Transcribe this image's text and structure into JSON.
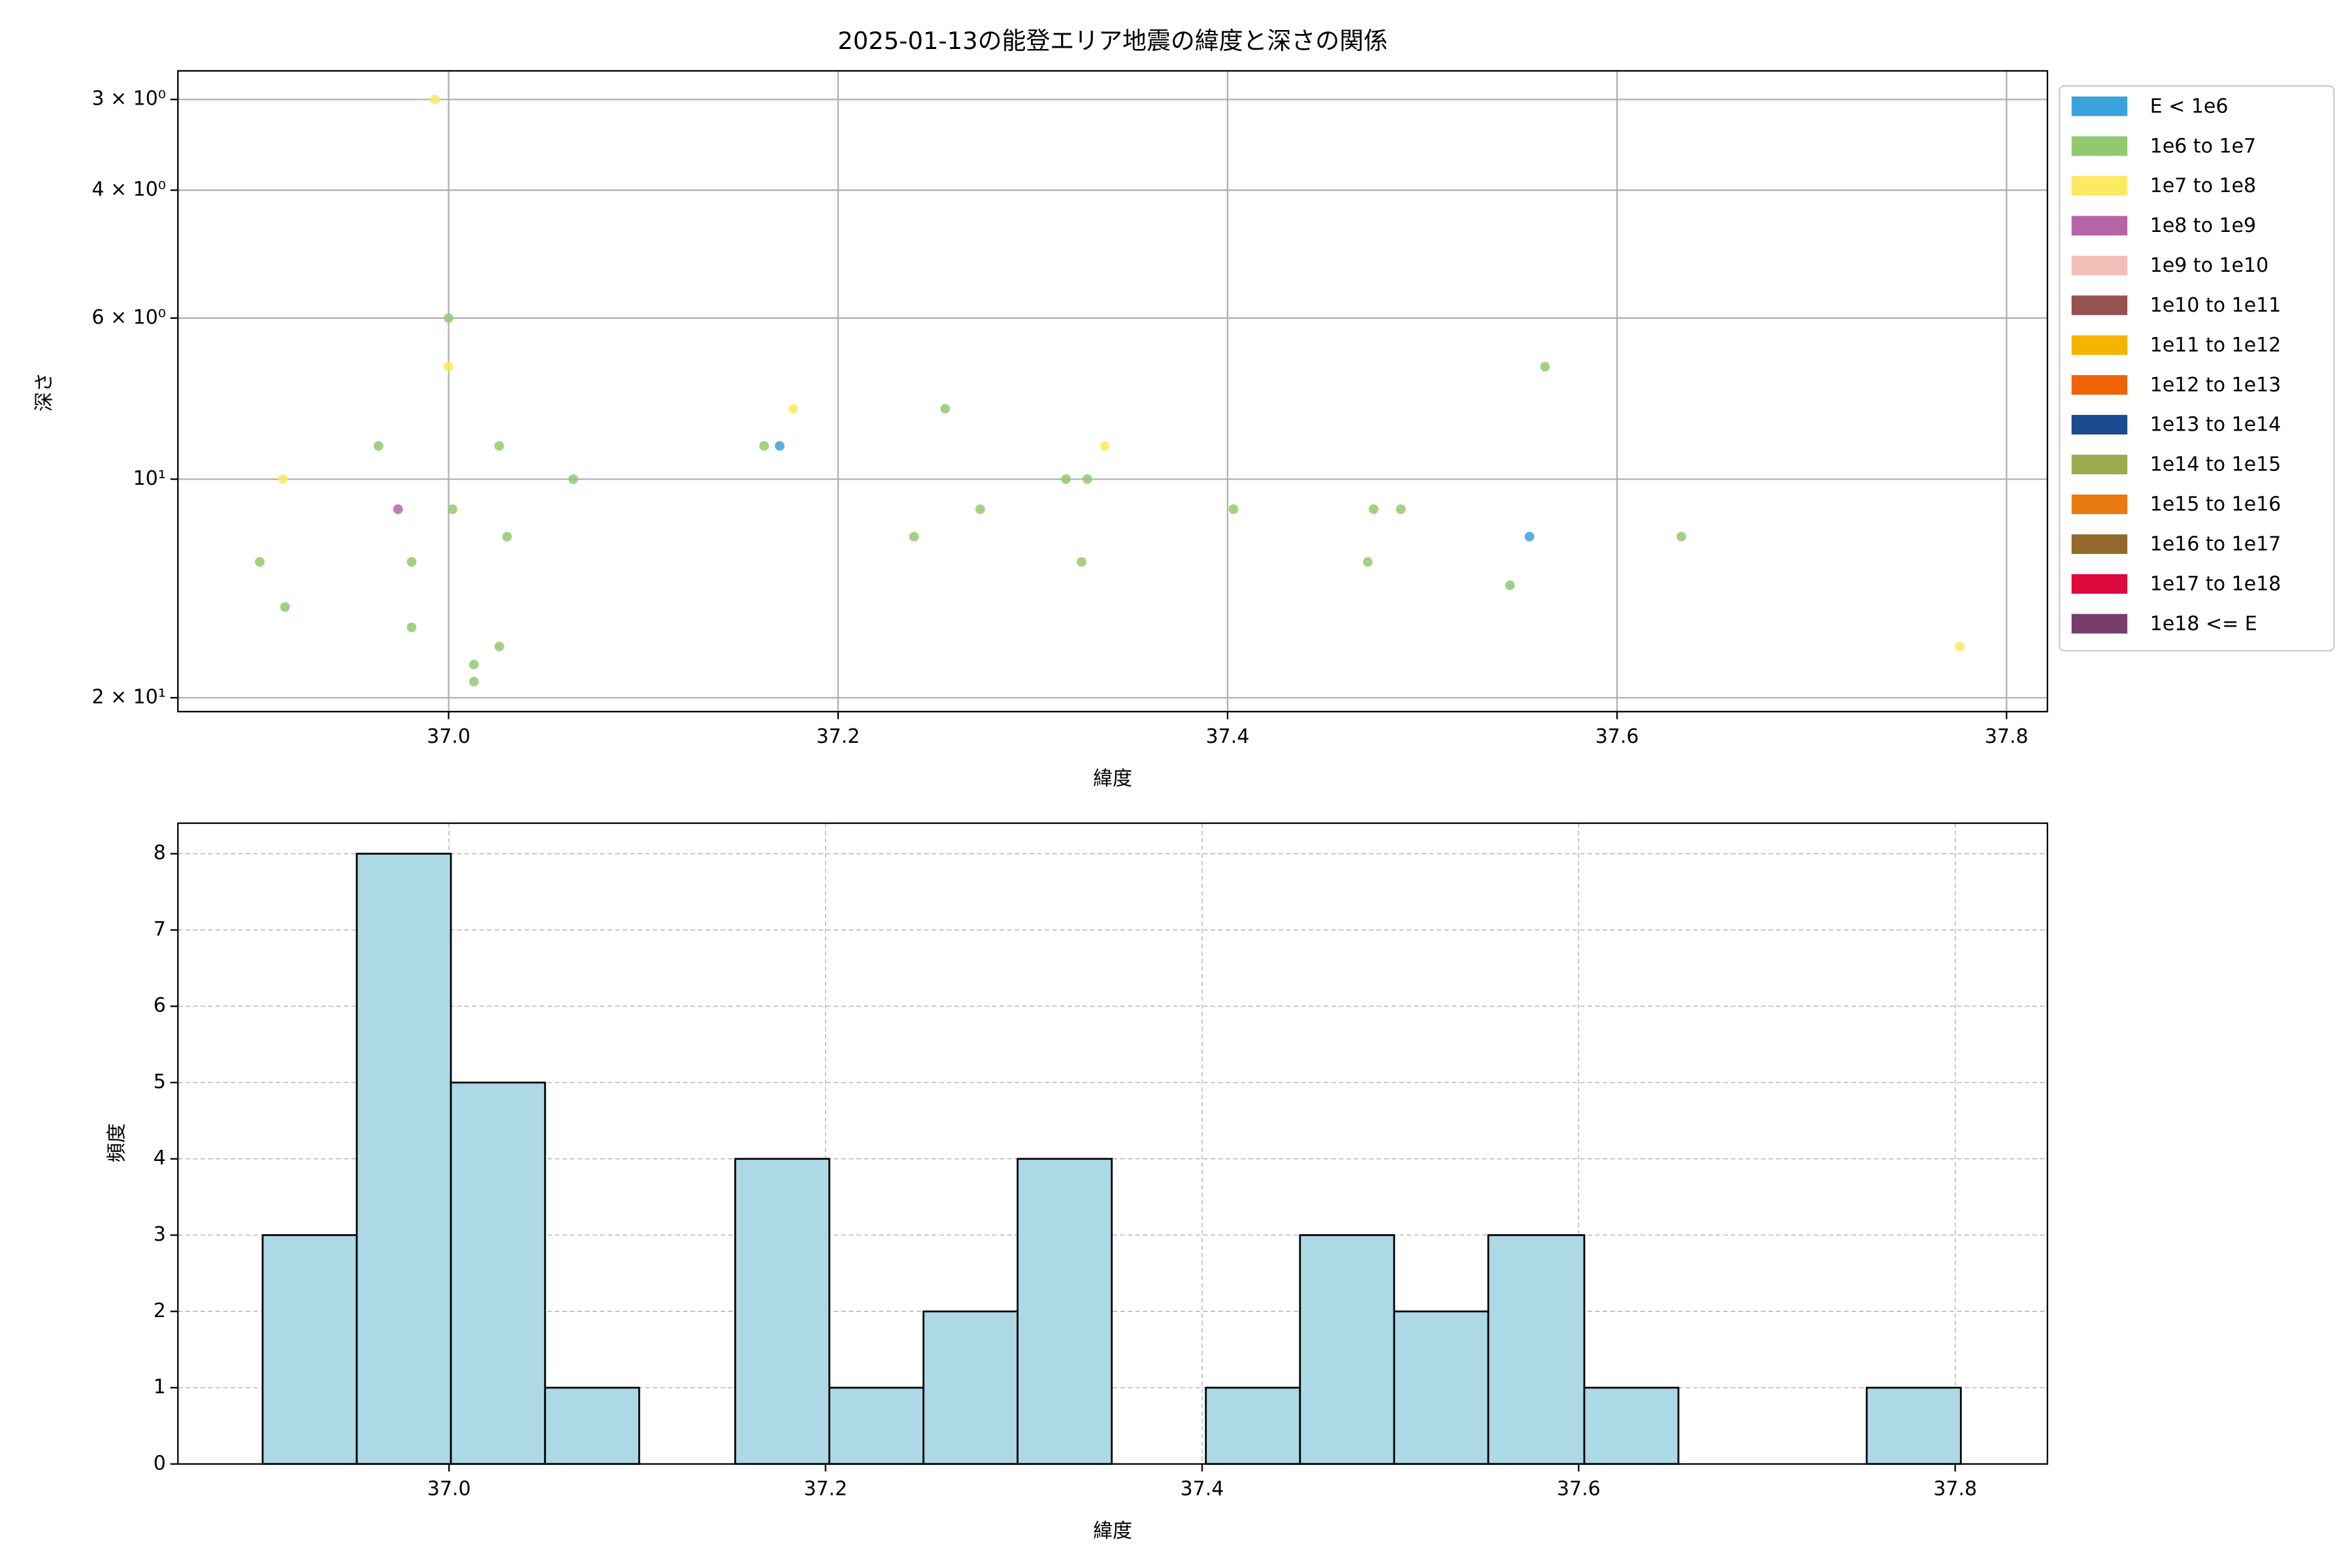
{
  "chart_data": [
    {
      "type": "scatter",
      "title": "2025-01-13の能登エリア地震の緯度と深さの関係",
      "x_label": "緯度",
      "y_label": "深さ",
      "yscale": "log",
      "y_inverted": true,
      "grid": true,
      "legend": "outside upper right",
      "xlim": [
        36.861,
        37.821
      ],
      "xticks": [
        {
          "value": 37.0,
          "label": "37.0"
        },
        {
          "value": 37.2,
          "label": "37.2"
        },
        {
          "value": 37.4,
          "label": "37.4"
        },
        {
          "value": 37.6,
          "label": "37.6"
        },
        {
          "value": 37.8,
          "label": "37.8"
        }
      ],
      "ylim": [
        2.74,
        20.9
      ],
      "yticks": [
        {
          "value": 3,
          "label": "3 × 10⁰"
        },
        {
          "value": 4,
          "label": "4 × 10⁰"
        },
        {
          "value": 6,
          "label": "6 × 10⁰"
        },
        {
          "value": 10,
          "label": "10¹"
        },
        {
          "value": 20,
          "label": "2 × 10¹"
        }
      ],
      "series": [
        {
          "name": "E < 1e6",
          "color": "#3ba3dc",
          "x": [
            37.17,
            37.555
          ],
          "values": [
            9,
            12
          ]
        },
        {
          "name": "1e6 to 1e7",
          "color": "#92c96f",
          "x": [
            37.0,
            37.255,
            37.563,
            36.964,
            37.026,
            37.162,
            37.064,
            37.317,
            37.328,
            37.002,
            37.273,
            37.403,
            37.475,
            37.489,
            37.03,
            37.239,
            37.633,
            36.903,
            36.981,
            37.325,
            37.472,
            37.545,
            36.916,
            36.981,
            37.026,
            37.013,
            37.013
          ],
          "values": [
            6,
            8,
            7,
            9,
            9,
            9,
            10,
            10,
            10,
            11,
            11,
            11,
            11,
            11,
            12,
            12,
            12,
            13,
            13,
            13,
            13,
            14,
            15,
            16,
            17,
            18,
            19
          ]
        },
        {
          "name": "1e7 to 1e8",
          "color": "#fce960",
          "x": [
            36.993,
            37.0,
            37.177,
            37.337,
            36.915,
            37.776
          ],
          "values": [
            3,
            7,
            8,
            9,
            10,
            17
          ]
        },
        {
          "name": "1e8 to 1e9",
          "color": "#b565a7",
          "x": [
            36.974
          ],
          "values": [
            11
          ]
        },
        {
          "name": "1e9 to 1e10",
          "color": "#f4bfb8",
          "x": [],
          "values": []
        },
        {
          "name": "1e10 to 1e11",
          "color": "#955251",
          "x": [],
          "values": []
        },
        {
          "name": "1e11 to 1e12",
          "color": "#f6b300",
          "x": [],
          "values": []
        },
        {
          "name": "1e12 to 1e13",
          "color": "#ef6306",
          "x": [],
          "values": []
        },
        {
          "name": "1e13 to 1e14",
          "color": "#1a4a8f",
          "x": [],
          "values": []
        },
        {
          "name": "1e14 to 1e15",
          "color": "#9cab4d",
          "x": [],
          "values": []
        },
        {
          "name": "1e15 to 1e16",
          "color": "#e97a0f",
          "x": [],
          "values": []
        },
        {
          "name": "1e16 to 1e17",
          "color": "#936a2a",
          "x": [],
          "values": []
        },
        {
          "name": "1e17 to 1e18",
          "color": "#de0a3e",
          "x": [],
          "values": []
        },
        {
          "name": "1e18 <= E",
          "color": "#763f6b",
          "x": [],
          "values": []
        }
      ]
    },
    {
      "type": "histogram",
      "x_label": "緯度",
      "y_label": "頻度",
      "grid": true,
      "color": "#add8e6",
      "edgecolor": "#000000",
      "xlim": [
        36.856,
        37.849
      ],
      "xticks": [
        {
          "value": 37.0,
          "label": "37.0"
        },
        {
          "value": 37.2,
          "label": "37.2"
        },
        {
          "value": 37.4,
          "label": "37.4"
        },
        {
          "value": 37.6,
          "label": "37.6"
        },
        {
          "value": 37.8,
          "label": "37.8"
        }
      ],
      "ylim": [
        0,
        8.4
      ],
      "yticks": [
        0,
        1,
        2,
        3,
        4,
        5,
        6,
        7,
        8
      ],
      "bins": [
        36.901,
        36.951,
        37.001,
        37.051,
        37.101,
        37.152,
        37.202,
        37.252,
        37.302,
        37.352,
        37.402,
        37.452,
        37.502,
        37.552,
        37.603,
        37.653,
        37.703,
        37.753,
        37.803
      ],
      "values": [
        3,
        8,
        5,
        1,
        0,
        4,
        1,
        2,
        4,
        0,
        1,
        3,
        2,
        3,
        1,
        0,
        0,
        1
      ]
    }
  ]
}
